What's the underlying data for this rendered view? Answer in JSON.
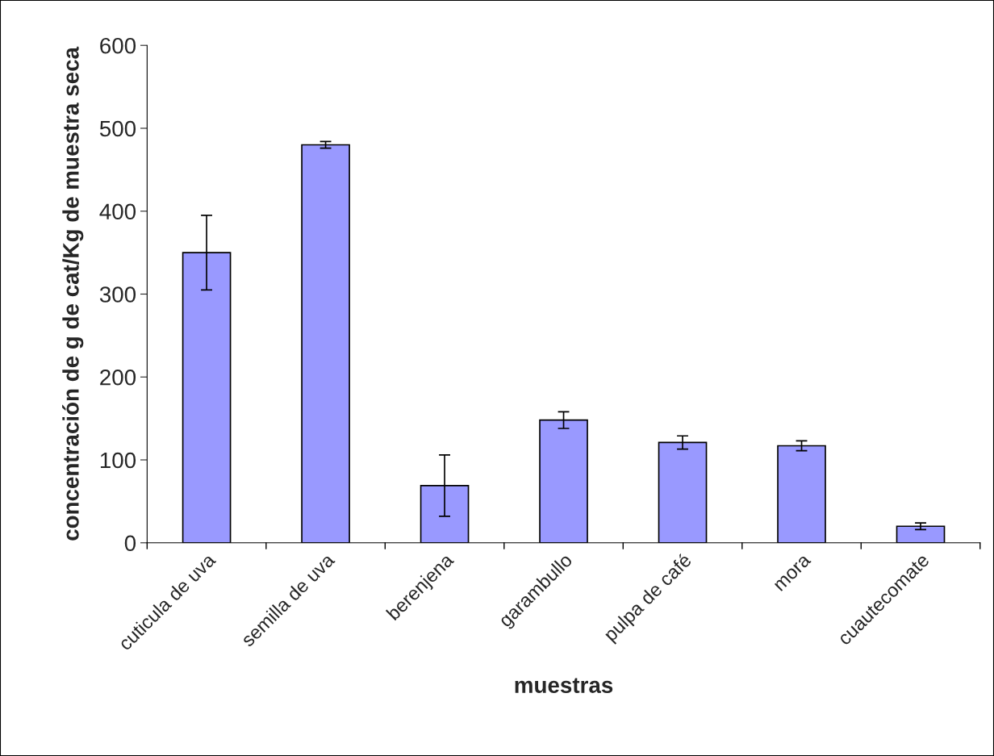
{
  "chart_data": {
    "type": "bar",
    "xlabel": "muestras",
    "ylabel": "concentración de g de cat/Kg de muestra seca",
    "categories": [
      "cuticula de uva",
      "semilla de uva",
      "berenjena",
      "garambullo",
      "pulpa de café",
      "mora",
      "cuautecomate"
    ],
    "values": [
      350,
      480,
      69,
      148,
      121,
      117,
      20
    ],
    "errors": [
      45,
      4,
      37,
      10,
      8,
      6,
      4
    ],
    "color": "#9999ff",
    "ylim": [
      0,
      600
    ],
    "yticks": [
      0,
      100,
      200,
      300,
      400,
      500,
      600
    ],
    "grid": false,
    "legend": false
  }
}
